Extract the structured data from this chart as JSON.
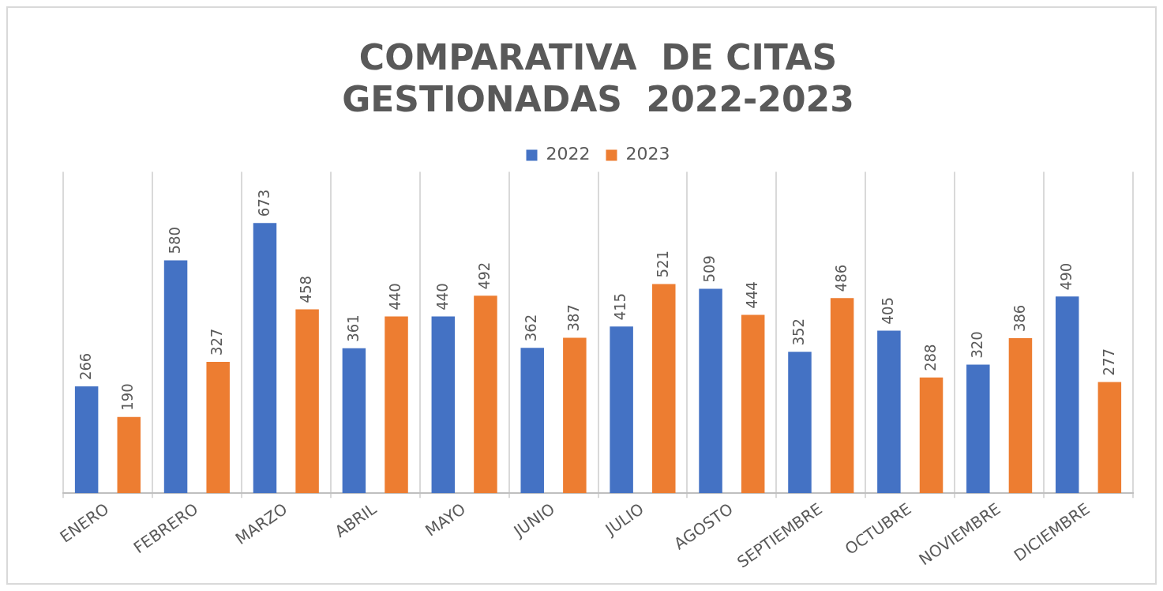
{
  "chart_data": {
    "type": "bar",
    "title": [
      "COMPARATIVA  DE CITAS",
      "GESTIONADAS  2022-2023"
    ],
    "categories": [
      "ENERO",
      "FEBRERO",
      "MARZO",
      "ABRIL",
      "MAYO",
      "JUNIO",
      "JULIO",
      "AGOSTO",
      "SEPTIEMBRE",
      "OCTUBRE",
      "NOVIEMBRE",
      "DICIEMBRE"
    ],
    "series": [
      {
        "name": "2022",
        "color": "#4472c4",
        "values": [
          266,
          580,
          673,
          361,
          440,
          362,
          415,
          509,
          352,
          405,
          320,
          490
        ]
      },
      {
        "name": "2023",
        "color": "#ed7d31",
        "values": [
          190,
          327,
          458,
          440,
          492,
          387,
          521,
          444,
          486,
          288,
          386,
          277
        ]
      }
    ],
    "data_labels": true,
    "grid": "x",
    "legend": "top"
  }
}
